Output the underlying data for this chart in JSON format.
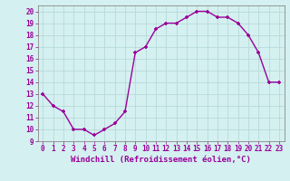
{
  "x": [
    0,
    1,
    2,
    3,
    4,
    5,
    6,
    7,
    8,
    9,
    10,
    11,
    12,
    13,
    14,
    15,
    16,
    17,
    18,
    19,
    20,
    21,
    22,
    23
  ],
  "y": [
    13,
    12,
    11.5,
    10,
    10,
    9.5,
    10,
    10.5,
    11.5,
    16.5,
    17.0,
    18.5,
    19.0,
    19.0,
    19.5,
    20.0,
    20.0,
    19.5,
    19.5,
    19.0,
    18.0,
    16.5,
    14.0,
    14.0
  ],
  "line_color": "#990099",
  "marker": "+",
  "marker_size": 3.5,
  "marker_linewidth": 1.2,
  "line_width": 1.0,
  "xlabel": "Windchill (Refroidissement éolien,°C)",
  "xlabel_fontsize": 6.5,
  "background_color": "#d4f0f0",
  "grid_color": "#b8dada",
  "xlim": [
    -0.5,
    23.5
  ],
  "ylim": [
    9,
    20.5
  ],
  "yticks": [
    9,
    10,
    11,
    12,
    13,
    14,
    15,
    16,
    17,
    18,
    19,
    20
  ],
  "xticks": [
    0,
    1,
    2,
    3,
    4,
    5,
    6,
    7,
    8,
    9,
    10,
    11,
    12,
    13,
    14,
    15,
    16,
    17,
    18,
    19,
    20,
    21,
    22,
    23
  ],
  "tick_fontsize": 5.5,
  "label_color": "#990099"
}
